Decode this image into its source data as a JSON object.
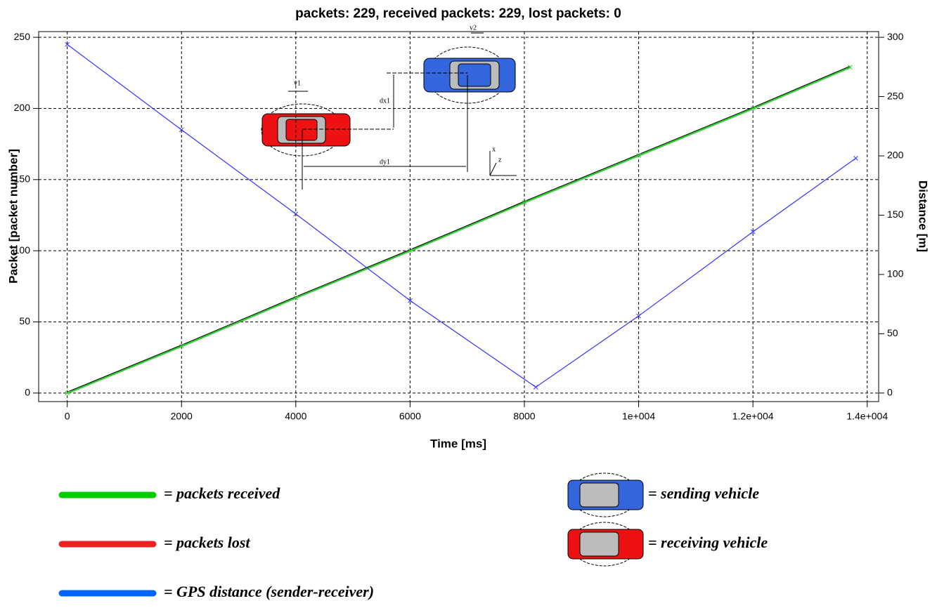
{
  "chart_data": {
    "type": "line",
    "title": "packets: 229, received packets: 229, lost packets: 0",
    "x_label": "Time [ms]",
    "y_label": "Packet [packet number]",
    "y2_label": "Distance [m]",
    "xlim": [
      -500,
      14200
    ],
    "ylim": [
      -6,
      254
    ],
    "y2lim": [
      -7.2,
      304.8
    ],
    "xticks": [
      0,
      2000,
      4000,
      6000,
      8000,
      {
        "value": 10000,
        "label": "1e+004"
      },
      {
        "value": 12000,
        "label": "1.2e+004"
      },
      {
        "value": 14000,
        "label": "1.4e+004"
      }
    ],
    "yticks": [
      0,
      50,
      100,
      150,
      200,
      250
    ],
    "y2ticks": [
      0,
      50,
      100,
      150,
      200,
      250,
      300
    ],
    "grid": true,
    "series": [
      {
        "name": "= packets received",
        "color": "#33cc33",
        "x": [
          0,
          2000,
          4000,
          6000,
          8000,
          10000,
          12000,
          13700
        ],
        "values": [
          0,
          33,
          67,
          100,
          134,
          167,
          200,
          229
        ]
      },
      {
        "name": "= GPS distance (sender-receiver)",
        "color": "#3333ff",
        "axis": "y2",
        "x": [
          0,
          2000,
          4000,
          6000,
          8200,
          10000,
          12000,
          13800
        ],
        "values": [
          294,
          222,
          151,
          78,
          5,
          65,
          136,
          198
        ]
      }
    ],
    "legend": [
      {
        "label": "= packets received",
        "color": "#00cc00"
      },
      {
        "label": "= packets lost",
        "color": "#ee2222"
      },
      {
        "label": "= GPS distance (sender-receiver)",
        "color": "#0066ff"
      }
    ],
    "vehicle_legend": [
      {
        "label": "= sending vehicle",
        "color": "#3366dd"
      },
      {
        "label": "= receiving vehicle",
        "color": "#ee1111"
      }
    ],
    "annotations": [
      "v1",
      "v2",
      "dx1",
      "dy1",
      "x",
      "z"
    ]
  }
}
